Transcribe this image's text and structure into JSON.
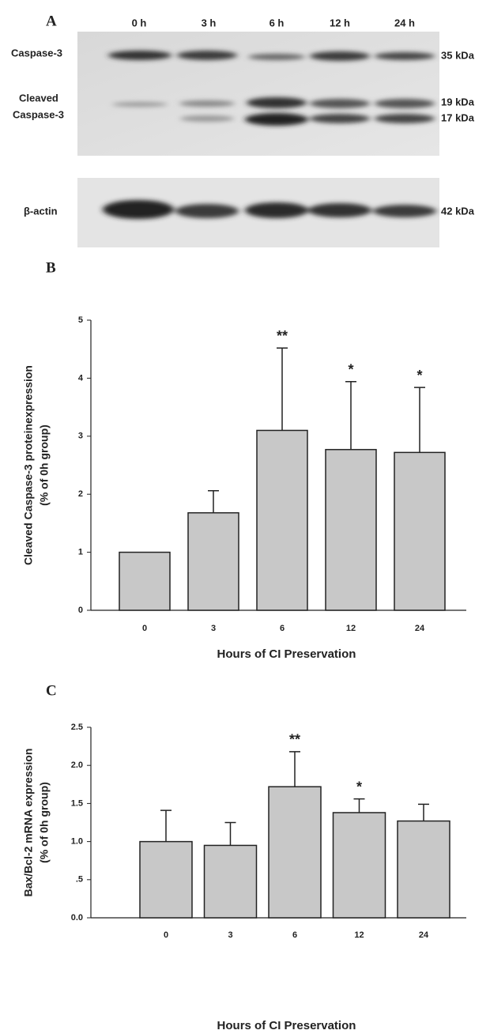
{
  "blot": {
    "panel": "A",
    "lanes": [
      "0 h",
      "3 h",
      "6 h",
      "12 h",
      "24 h"
    ],
    "left_labels": [
      "Caspase-3",
      "Cleaved",
      "Caspase-3",
      "β-actin"
    ],
    "right_labels": [
      "35 kDa",
      "19 kDa",
      "17 kDa",
      "42 kDa"
    ]
  },
  "chart_data": [
    {
      "type": "bar",
      "panel": "B",
      "ylabel": [
        "Cleaved Caspase-3 proteinexpression",
        "(% of 0h group)"
      ],
      "xlabel": "Hours   of   CI   Preservation",
      "categories": [
        "0",
        "3",
        "6",
        "12",
        "24"
      ],
      "values": [
        1.0,
        1.68,
        3.1,
        2.77,
        2.72
      ],
      "errors": [
        null,
        0.38,
        1.42,
        1.17,
        1.12
      ],
      "significance": [
        null,
        null,
        "**",
        "*",
        "*"
      ],
      "color": "#c8c8c8",
      "ylim": [
        0,
        5
      ],
      "yticks": [
        0,
        1,
        2,
        3,
        4,
        5
      ]
    },
    {
      "type": "bar",
      "panel": "C",
      "ylabel": [
        "Bax/Bcl-2  mRNA  expression",
        "(% of 0h group)"
      ],
      "xlabel": "Hours   of   CI   Preservation",
      "categories": [
        "0",
        "3",
        "6",
        "12",
        "24"
      ],
      "values": [
        1.0,
        0.95,
        1.72,
        1.38,
        1.27
      ],
      "errors": [
        0.41,
        0.3,
        0.46,
        0.18,
        0.22
      ],
      "significance": [
        null,
        null,
        "**",
        "*",
        null
      ],
      "color": "#c8c8c8",
      "ylim": [
        0,
        2.5
      ],
      "yticks": [
        {
          "value": 0,
          "label": "0.0"
        },
        {
          "value": 0.5,
          "label": ".5"
        },
        {
          "value": 1,
          "label": "1.0"
        },
        {
          "value": 1.5,
          "label": "1.5"
        },
        {
          "value": 2,
          "label": "2.0"
        },
        2.5
      ]
    }
  ]
}
